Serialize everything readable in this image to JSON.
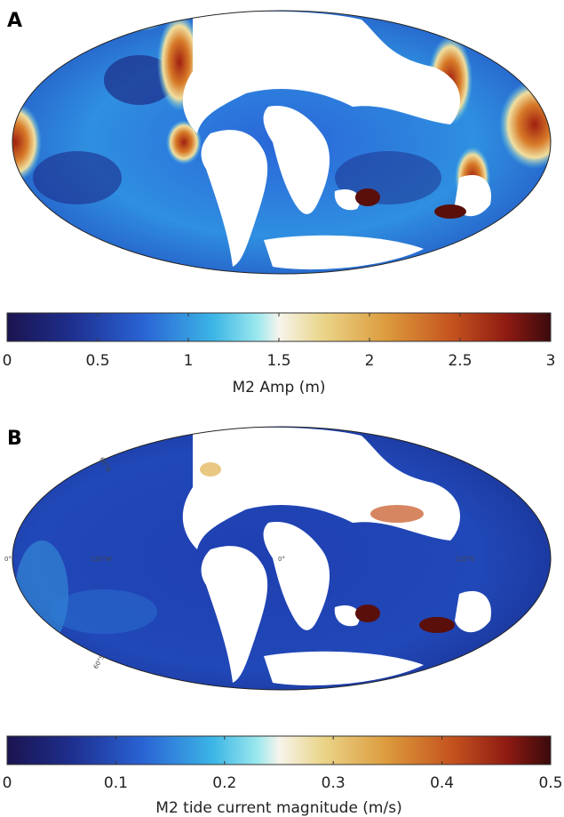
{
  "panels": [
    {
      "label": "A",
      "colorbar": {
        "label": "M2 Amp (m)",
        "lim": [
          0,
          3
        ],
        "ticks": [
          0,
          0.5,
          1,
          1.5,
          2,
          2.5,
          3
        ]
      }
    },
    {
      "label": "B",
      "graticule_labels": [
        "60°N",
        "0°",
        "120°W",
        "0°",
        "120°E",
        "60°S"
      ],
      "colorbar": {
        "label": "M2 tide current magnitude (m/s)",
        "lim": [
          0,
          0.5
        ],
        "ticks": [
          0,
          0.1,
          0.2,
          0.3,
          0.4,
          0.5
        ]
      }
    }
  ]
}
